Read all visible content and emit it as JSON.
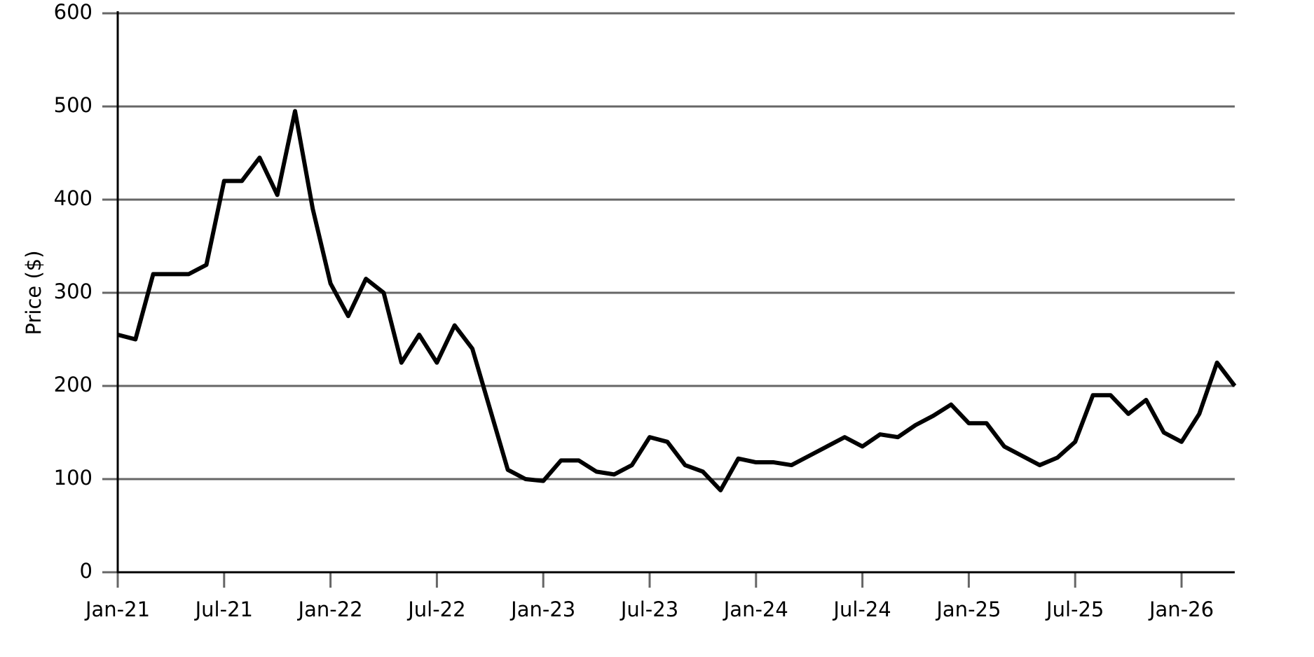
{
  "chart_data": {
    "type": "line",
    "y_label": "Price ($)",
    "x": [
      "Jan-21",
      "Feb-21",
      "Mar-21",
      "Apr-21",
      "May-21",
      "Jun-21",
      "Jul-21",
      "Aug-21",
      "Sep-21",
      "Oct-21",
      "Nov-21",
      "Dec-21",
      "Jan-22",
      "Feb-22",
      "Mar-22",
      "Apr-22",
      "May-22",
      "Jun-22",
      "Jul-22",
      "Aug-22",
      "Sep-22",
      "Oct-22",
      "Nov-22",
      "Dec-22",
      "Jan-23",
      "Feb-23",
      "Mar-23",
      "Apr-23",
      "May-23",
      "Jun-23",
      "Jul-23",
      "Aug-23",
      "Sep-23",
      "Oct-23",
      "Nov-23",
      "Dec-23",
      "Jan-24",
      "Feb-24",
      "Mar-24",
      "Apr-24",
      "May-24",
      "Jun-24",
      "Jul-24",
      "Aug-24",
      "Sep-24",
      "Oct-24",
      "Nov-24",
      "Dec-24",
      "Jan-25",
      "Feb-25",
      "Mar-25",
      "Apr-25",
      "May-25",
      "Jun-25",
      "Jul-25",
      "Aug-25",
      "Sep-25",
      "Oct-25",
      "Nov-25",
      "Dec-25",
      "Jan-26",
      "Feb-26",
      "Mar-26",
      "Apr-26"
    ],
    "series": [
      {
        "name": "Price",
        "color": "#000000",
        "values": [
          255,
          250,
          320,
          320,
          320,
          330,
          420,
          420,
          445,
          405,
          495,
          390,
          310,
          275,
          315,
          300,
          225,
          255,
          225,
          265,
          240,
          175,
          110,
          100,
          98,
          120,
          120,
          108,
          105,
          115,
          145,
          140,
          115,
          108,
          88,
          122,
          118,
          118,
          115,
          125,
          135,
          145,
          135,
          148,
          145,
          158,
          168,
          180,
          160,
          160,
          135,
          125,
          115,
          123,
          140,
          190,
          190,
          170,
          185,
          150,
          140,
          170,
          225,
          200
        ]
      }
    ],
    "xticks": [
      "Jan-21",
      "Jul-21",
      "Jan-22",
      "Jul-22",
      "Jan-23",
      "Jul-23",
      "Jan-24",
      "Jul-24",
      "Jan-25",
      "Jul-25",
      "Jan-26"
    ],
    "ylim": [
      0,
      600
    ],
    "yticks": [
      0,
      100,
      200,
      300,
      400,
      500,
      600
    ],
    "grid": true
  }
}
